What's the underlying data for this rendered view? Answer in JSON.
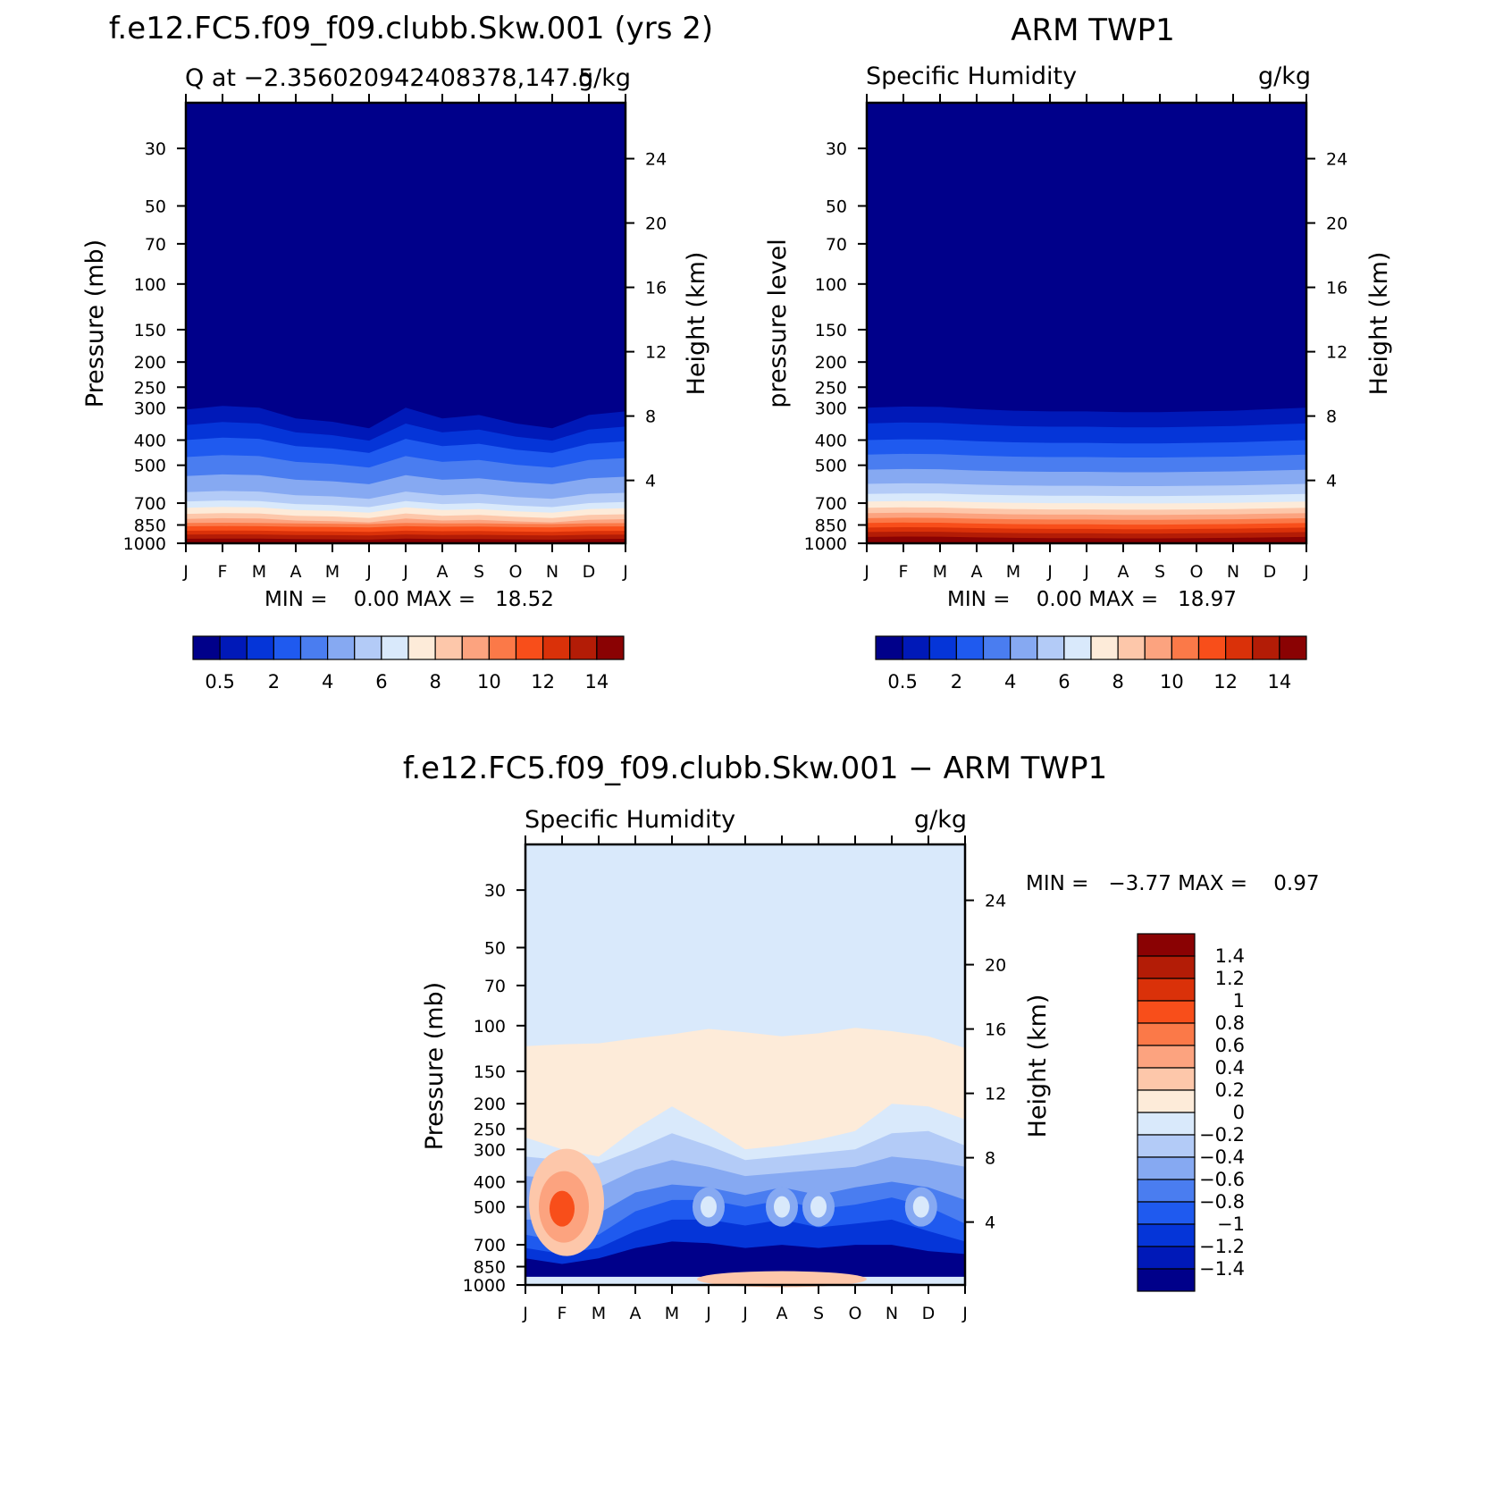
{
  "months": [
    "J",
    "F",
    "M",
    "A",
    "M",
    "J",
    "J",
    "A",
    "S",
    "O",
    "N",
    "D",
    "J"
  ],
  "pressure_ticks": [
    "30",
    "50",
    "70",
    "100",
    "150",
    "200",
    "250",
    "300",
    "400",
    "500",
    "700",
    "850",
    "1000"
  ],
  "pressure_values": [
    30,
    50,
    70,
    100,
    150,
    200,
    250,
    300,
    400,
    500,
    700,
    850,
    1000
  ],
  "height_ticks": [
    "24",
    "20",
    "16",
    "12",
    "8",
    "4"
  ],
  "height_values": [
    24,
    20,
    16,
    12,
    8,
    4
  ],
  "chart_data": [
    {
      "type": "heatmap",
      "title": "f.e12.FC5.f09_f09.clubb.Skw.001 (yrs 2)",
      "left_label": "Q at −2.356020942408378,147.5",
      "right_label": "g/kg",
      "ylabel": "Pressure (mb)",
      "y2label": "Height (km)",
      "min_max": "MIN =    0.00 MAX =   18.52",
      "x_categories": [
        "J",
        "F",
        "M",
        "A",
        "M",
        "J",
        "J",
        "A",
        "S",
        "O",
        "N",
        "D",
        "J"
      ],
      "y_levels_mb": [
        30,
        50,
        70,
        100,
        150,
        200,
        250,
        300,
        400,
        500,
        700,
        850,
        1000
      ],
      "ylim_mb": [
        20,
        1000
      ],
      "colorbar_labels": [
        "0.5",
        "2",
        "4",
        "6",
        "8",
        "10",
        "12",
        "14"
      ],
      "colorbar_colors": [
        "#00008a",
        "#0019b8",
        "#0535d8",
        "#1f5aef",
        "#4a7df0",
        "#86a9f2",
        "#b3cbf7",
        "#d9e9fb",
        "#fdebd9",
        "#fdc7aa",
        "#fca37f",
        "#fb7948",
        "#f84e1a",
        "#da3109",
        "#b31c06",
        "#8a0203"
      ],
      "profile_heights_hPa": {
        "0.5": [
          305,
          295,
          300,
          330,
          340,
          355,
          300,
          325,
          315,
          340,
          355,
          320,
          310
        ],
        "1": [
          350,
          340,
          350,
          380,
          390,
          410,
          345,
          375,
          365,
          390,
          405,
          365,
          355
        ],
        "2": [
          405,
          395,
          405,
          440,
          450,
          475,
          400,
          435,
          425,
          450,
          470,
          425,
          410
        ],
        "4": [
          470,
          460,
          470,
          505,
          515,
          545,
          465,
          500,
          490,
          520,
          540,
          490,
          475
        ],
        "6": [
          560,
          550,
          560,
          600,
          610,
          650,
          555,
          595,
          585,
          620,
          640,
          560,
          565
        ],
        "8": [
          650,
          640,
          650,
          690,
          700,
          740,
          645,
          685,
          675,
          710,
          730,
          650,
          655
        ]
      }
    },
    {
      "type": "heatmap",
      "title": "ARM TWP1",
      "left_label": "Specific Humidity",
      "right_label": "g/kg",
      "ylabel": "pressure level",
      "y2label": "Height (km)",
      "min_max": "MIN =    0.00 MAX =   18.97",
      "x_categories": [
        "J",
        "F",
        "M",
        "A",
        "M",
        "J",
        "J",
        "A",
        "S",
        "O",
        "N",
        "D",
        "J"
      ],
      "y_levels_mb": [
        30,
        50,
        70,
        100,
        150,
        200,
        250,
        300,
        400,
        500,
        700,
        850,
        1000
      ],
      "ylim_mb": [
        20,
        1000
      ],
      "colorbar_labels": [
        "0.5",
        "2",
        "4",
        "6",
        "8",
        "10",
        "12",
        "14"
      ],
      "colorbar_colors": [
        "#00008a",
        "#0019b8",
        "#0535d8",
        "#1f5aef",
        "#4a7df0",
        "#86a9f2",
        "#b3cbf7",
        "#d9e9fb",
        "#fdebd9",
        "#fdc7aa",
        "#fca37f",
        "#fb7948",
        "#f84e1a",
        "#da3109",
        "#b31c06",
        "#8a0203"
      ]
    },
    {
      "type": "heatmap",
      "title": "f.e12.FC5.f09_f09.clubb.Skw.001 − ARM TWP1",
      "left_label": "Specific Humidity",
      "right_label": "g/kg",
      "ylabel": "Pressure (mb)",
      "y2label": "Height (km)",
      "min_max": "MIN =   −3.77 MAX =    0.97",
      "x_categories": [
        "J",
        "F",
        "M",
        "A",
        "M",
        "J",
        "J",
        "A",
        "S",
        "O",
        "N",
        "D",
        "J"
      ],
      "y_levels_mb": [
        30,
        50,
        70,
        100,
        150,
        200,
        250,
        300,
        400,
        500,
        700,
        850,
        1000
      ],
      "ylim_mb": [
        20,
        1000
      ],
      "colorbar_labels": [
        "1.4",
        "1.2",
        "1",
        "0.8",
        "0.6",
        "0.4",
        "0.2",
        "0",
        "−0.2",
        "−0.4",
        "−0.6",
        "−0.8",
        "−1",
        "−1.2",
        "−1.4"
      ],
      "colorbar_colors": [
        "#8a0203",
        "#b31c06",
        "#da3109",
        "#f84e1a",
        "#fb7948",
        "#fca37f",
        "#fdc7aa",
        "#fdebd9",
        "#d9e9fb",
        "#b3cbf7",
        "#86a9f2",
        "#4a7df0",
        "#1f5aef",
        "#0535d8",
        "#0019b8",
        "#00008a"
      ]
    }
  ]
}
